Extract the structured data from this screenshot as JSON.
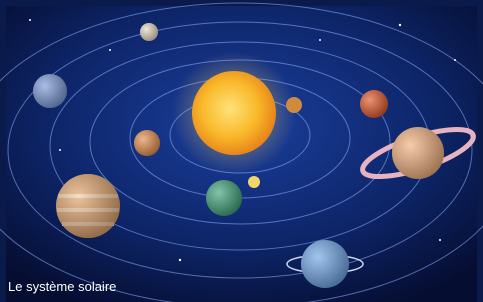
{
  "caption": "Le système solaire"
}
